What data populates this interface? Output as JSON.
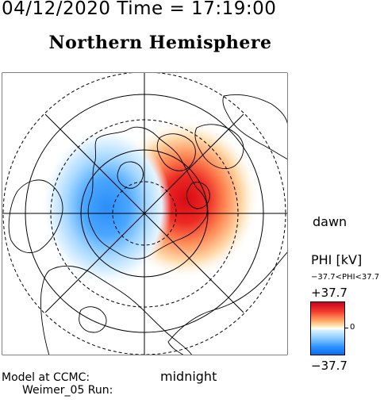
{
  "header": {
    "date_time": "04/12/2020 Time = 17:19:00",
    "title": "Northern Hemisphere"
  },
  "map": {
    "projection": "polar stereographic, north pole centered",
    "field": "electric potential PHI",
    "cells": {
      "positive": {
        "center_mlt_hours": 6,
        "peak_kV": 37.7,
        "color": "#e0141e"
      },
      "negative": {
        "center_mlt_hours": 18,
        "peak_kV": -37.7,
        "color": "#2a90ff"
      }
    },
    "latitude_circles_deg": [
      80,
      70,
      60,
      50
    ]
  },
  "labels": {
    "dawn": "dawn",
    "midnight": "midnight"
  },
  "footer": {
    "line1": "Model at CCMC:",
    "line2": "Weimer_05 Run:"
  },
  "colorbar": {
    "title": "PHI [kV]",
    "range_text": "−37.7<PHI<37.7",
    "max_label": "+37.7",
    "min_label": "−37.7",
    "zero_label": "0",
    "colors": [
      "#c8001e",
      "#ffa060",
      "#ffffff",
      "#82c8ff",
      "#0a6ef0"
    ]
  }
}
